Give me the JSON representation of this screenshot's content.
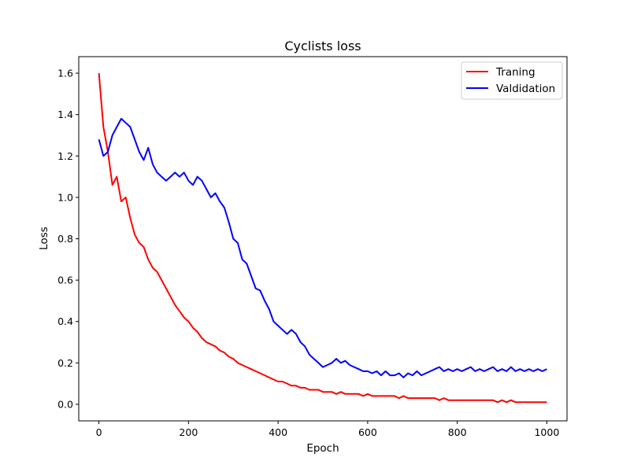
{
  "chart_data": {
    "type": "line",
    "title": "Cyclists loss",
    "xlabel": "Epoch",
    "ylabel": "Loss",
    "xlim": [
      -45,
      1045
    ],
    "ylim": [
      -0.08,
      1.68
    ],
    "xticks": [
      0,
      200,
      400,
      600,
      800,
      1000
    ],
    "yticks": [
      0.0,
      0.2,
      0.4,
      0.6,
      0.8,
      1.0,
      1.2,
      1.4,
      1.6
    ],
    "grid": false,
    "legend_position": "top-right",
    "x": [
      0,
      10,
      20,
      30,
      40,
      50,
      60,
      70,
      80,
      90,
      100,
      110,
      120,
      130,
      140,
      150,
      160,
      170,
      180,
      190,
      200,
      210,
      220,
      230,
      240,
      250,
      260,
      270,
      280,
      290,
      300,
      310,
      320,
      330,
      340,
      350,
      360,
      370,
      380,
      390,
      400,
      410,
      420,
      430,
      440,
      450,
      460,
      470,
      480,
      490,
      500,
      510,
      520,
      530,
      540,
      550,
      560,
      570,
      580,
      590,
      600,
      610,
      620,
      630,
      640,
      650,
      660,
      670,
      680,
      690,
      700,
      710,
      720,
      730,
      740,
      750,
      760,
      770,
      780,
      790,
      800,
      810,
      820,
      830,
      840,
      850,
      860,
      870,
      880,
      890,
      900,
      910,
      920,
      930,
      940,
      950,
      960,
      970,
      980,
      990,
      1000
    ],
    "series": [
      {
        "name": "Traning",
        "color": "#ff0000",
        "values": [
          1.6,
          1.34,
          1.22,
          1.06,
          1.1,
          0.98,
          1.0,
          0.9,
          0.82,
          0.78,
          0.76,
          0.7,
          0.66,
          0.64,
          0.6,
          0.56,
          0.52,
          0.48,
          0.45,
          0.42,
          0.4,
          0.37,
          0.35,
          0.32,
          0.3,
          0.29,
          0.28,
          0.26,
          0.25,
          0.23,
          0.22,
          0.2,
          0.19,
          0.18,
          0.17,
          0.16,
          0.15,
          0.14,
          0.13,
          0.12,
          0.11,
          0.11,
          0.1,
          0.09,
          0.09,
          0.08,
          0.08,
          0.07,
          0.07,
          0.07,
          0.06,
          0.06,
          0.06,
          0.05,
          0.06,
          0.05,
          0.05,
          0.05,
          0.05,
          0.04,
          0.05,
          0.04,
          0.04,
          0.04,
          0.04,
          0.04,
          0.04,
          0.03,
          0.04,
          0.03,
          0.03,
          0.03,
          0.03,
          0.03,
          0.03,
          0.03,
          0.02,
          0.03,
          0.02,
          0.02,
          0.02,
          0.02,
          0.02,
          0.02,
          0.02,
          0.02,
          0.02,
          0.02,
          0.02,
          0.01,
          0.02,
          0.01,
          0.02,
          0.01,
          0.01,
          0.01,
          0.01,
          0.01,
          0.01,
          0.01,
          0.01
        ]
      },
      {
        "name": "Valdidation",
        "color": "#0000ff",
        "values": [
          1.28,
          1.2,
          1.22,
          1.3,
          1.34,
          1.38,
          1.36,
          1.34,
          1.28,
          1.22,
          1.18,
          1.24,
          1.16,
          1.12,
          1.1,
          1.08,
          1.1,
          1.12,
          1.1,
          1.12,
          1.08,
          1.06,
          1.1,
          1.08,
          1.04,
          1.0,
          1.02,
          0.98,
          0.95,
          0.88,
          0.8,
          0.78,
          0.7,
          0.68,
          0.62,
          0.56,
          0.55,
          0.5,
          0.46,
          0.4,
          0.38,
          0.36,
          0.34,
          0.36,
          0.34,
          0.3,
          0.28,
          0.24,
          0.22,
          0.2,
          0.18,
          0.19,
          0.2,
          0.22,
          0.2,
          0.21,
          0.19,
          0.18,
          0.17,
          0.16,
          0.16,
          0.15,
          0.16,
          0.14,
          0.16,
          0.14,
          0.14,
          0.15,
          0.13,
          0.15,
          0.14,
          0.16,
          0.14,
          0.15,
          0.16,
          0.17,
          0.18,
          0.16,
          0.17,
          0.16,
          0.17,
          0.16,
          0.17,
          0.18,
          0.16,
          0.17,
          0.16,
          0.17,
          0.18,
          0.16,
          0.17,
          0.16,
          0.18,
          0.16,
          0.17,
          0.16,
          0.17,
          0.16,
          0.17,
          0.16,
          0.17
        ]
      }
    ]
  }
}
